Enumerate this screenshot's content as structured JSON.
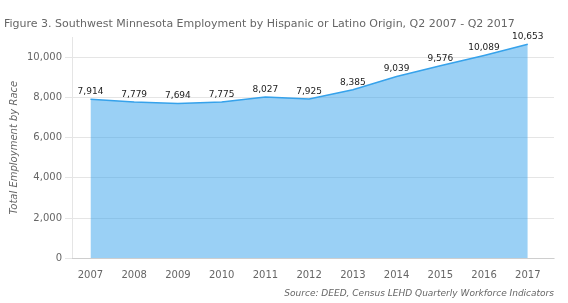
{
  "chart_data": {
    "type": "area",
    "title": "Figure 3. Southwest Minnesota Employment by Hispanic or Latino Origin, Q2 2007 - Q2 2017",
    "x": [
      2007,
      2008,
      2009,
      2010,
      2011,
      2012,
      2013,
      2014,
      2015,
      2016,
      2017
    ],
    "values": [
      7914,
      7779,
      7694,
      7775,
      8027,
      7925,
      8385,
      9039,
      9576,
      10089,
      10653
    ],
    "value_labels": [
      "7,914",
      "7,779",
      "7,694",
      "7,775",
      "8,027",
      "7,925",
      "8,385",
      "9,039",
      "9,576",
      "10,089",
      "10,653"
    ],
    "data_labels": true,
    "ylabel": "Total Employment by Race",
    "source": "Source: DEED, Census LEHD Quarterly Workforce Indicators",
    "xlim": [
      2006.6,
      2017.6
    ],
    "xticks": [
      2007,
      2008,
      2009,
      2010,
      2011,
      2012,
      2013,
      2014,
      2015,
      2016,
      2017
    ],
    "ylim": [
      0,
      11000
    ],
    "yticks": [
      0,
      {
        "value": 2000,
        "label": "2,000"
      },
      {
        "value": 4000,
        "label": "4,000"
      },
      {
        "value": 6000,
        "label": "6,000"
      },
      {
        "value": 8000,
        "label": "8,000"
      },
      {
        "value": 10000,
        "label": "10,000"
      }
    ],
    "grid": "y"
  }
}
